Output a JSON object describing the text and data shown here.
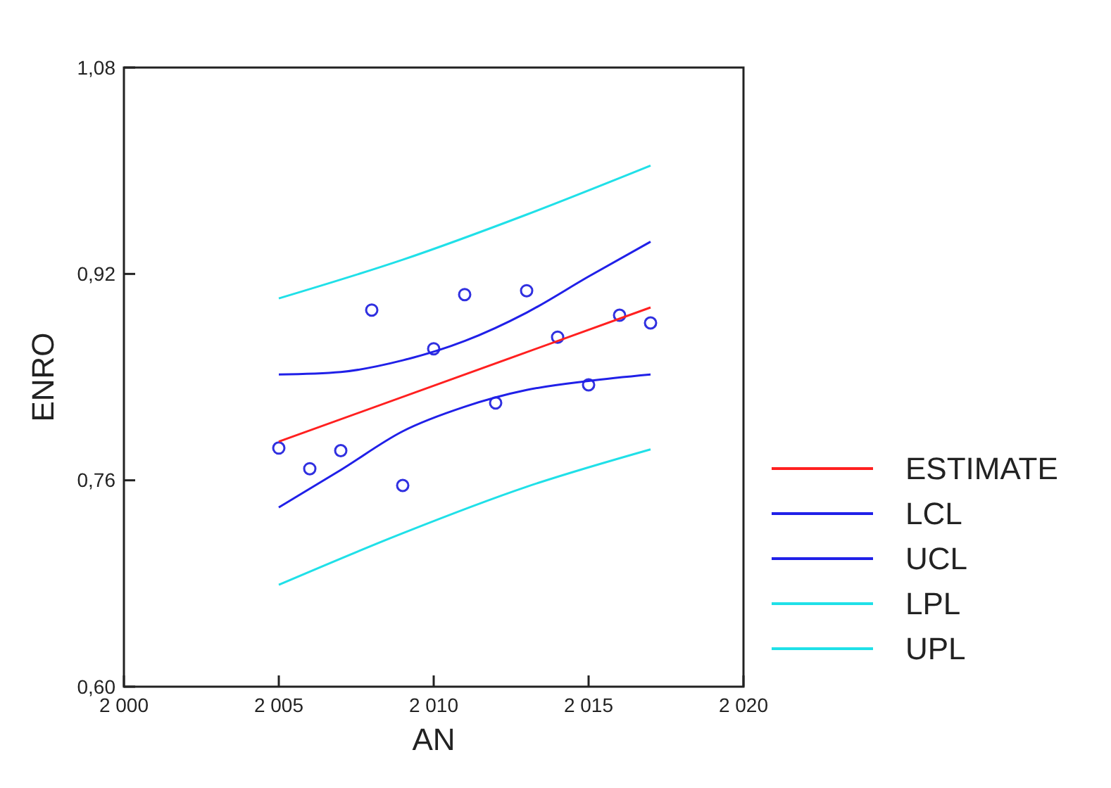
{
  "chart_data": {
    "type": "line",
    "xlabel": "AN",
    "ylabel": "ENRO",
    "xlim": [
      2000,
      2020
    ],
    "xticks": [
      {
        "value": 2000,
        "label": "2 000"
      },
      {
        "value": 2005,
        "label": "2 005"
      },
      {
        "value": 2010,
        "label": "2 010"
      },
      {
        "value": 2015,
        "label": "2 015"
      },
      {
        "value": 2020,
        "label": "2 020"
      }
    ],
    "ylim": [
      0.6,
      1.08
    ],
    "yticks": [
      {
        "value": 0.6,
        "label": "0,60"
      },
      {
        "value": 0.76,
        "label": "0,76"
      },
      {
        "value": 0.92,
        "label": "0,92"
      },
      {
        "value": 1.08,
        "label": "1,08"
      }
    ],
    "grid": false,
    "legend": "right",
    "series": [
      {
        "type": "scatter",
        "color": "#3030e0",
        "marker": "circle",
        "x": [
          2005,
          2006,
          2007,
          2008,
          2009,
          2010,
          2011,
          2012,
          2013,
          2014,
          2015,
          2016,
          2017
        ],
        "values": [
          0.785,
          0.769,
          0.783,
          0.892,
          0.756,
          0.862,
          0.904,
          0.82,
          0.907,
          0.871,
          0.834,
          0.888,
          0.882
        ]
      },
      {
        "name": "ESTIMATE",
        "color": "#ff2020",
        "x": [
          2005,
          2017
        ],
        "values": [
          0.79,
          0.894
        ]
      },
      {
        "name": "LCL",
        "color": "#2020e8",
        "x": [
          2005,
          2007,
          2009,
          2011,
          2013,
          2015,
          2017
        ],
        "values": [
          0.739,
          0.768,
          0.798,
          0.817,
          0.83,
          0.837,
          0.842
        ]
      },
      {
        "name": "UCL",
        "color": "#2020e8",
        "x": [
          2005,
          2007,
          2009,
          2011,
          2013,
          2015,
          2017
        ],
        "values": [
          0.842,
          0.844,
          0.853,
          0.868,
          0.89,
          0.918,
          0.945
        ]
      },
      {
        "name": "LPL",
        "color": "#20e0e8",
        "x": [
          2005,
          2009,
          2013,
          2017
        ],
        "values": [
          0.679,
          0.719,
          0.755,
          0.784
        ]
      },
      {
        "name": "UPL",
        "color": "#20e0e8",
        "x": [
          2005,
          2009,
          2013,
          2017
        ],
        "values": [
          0.901,
          0.931,
          0.966,
          1.004
        ]
      }
    ]
  }
}
